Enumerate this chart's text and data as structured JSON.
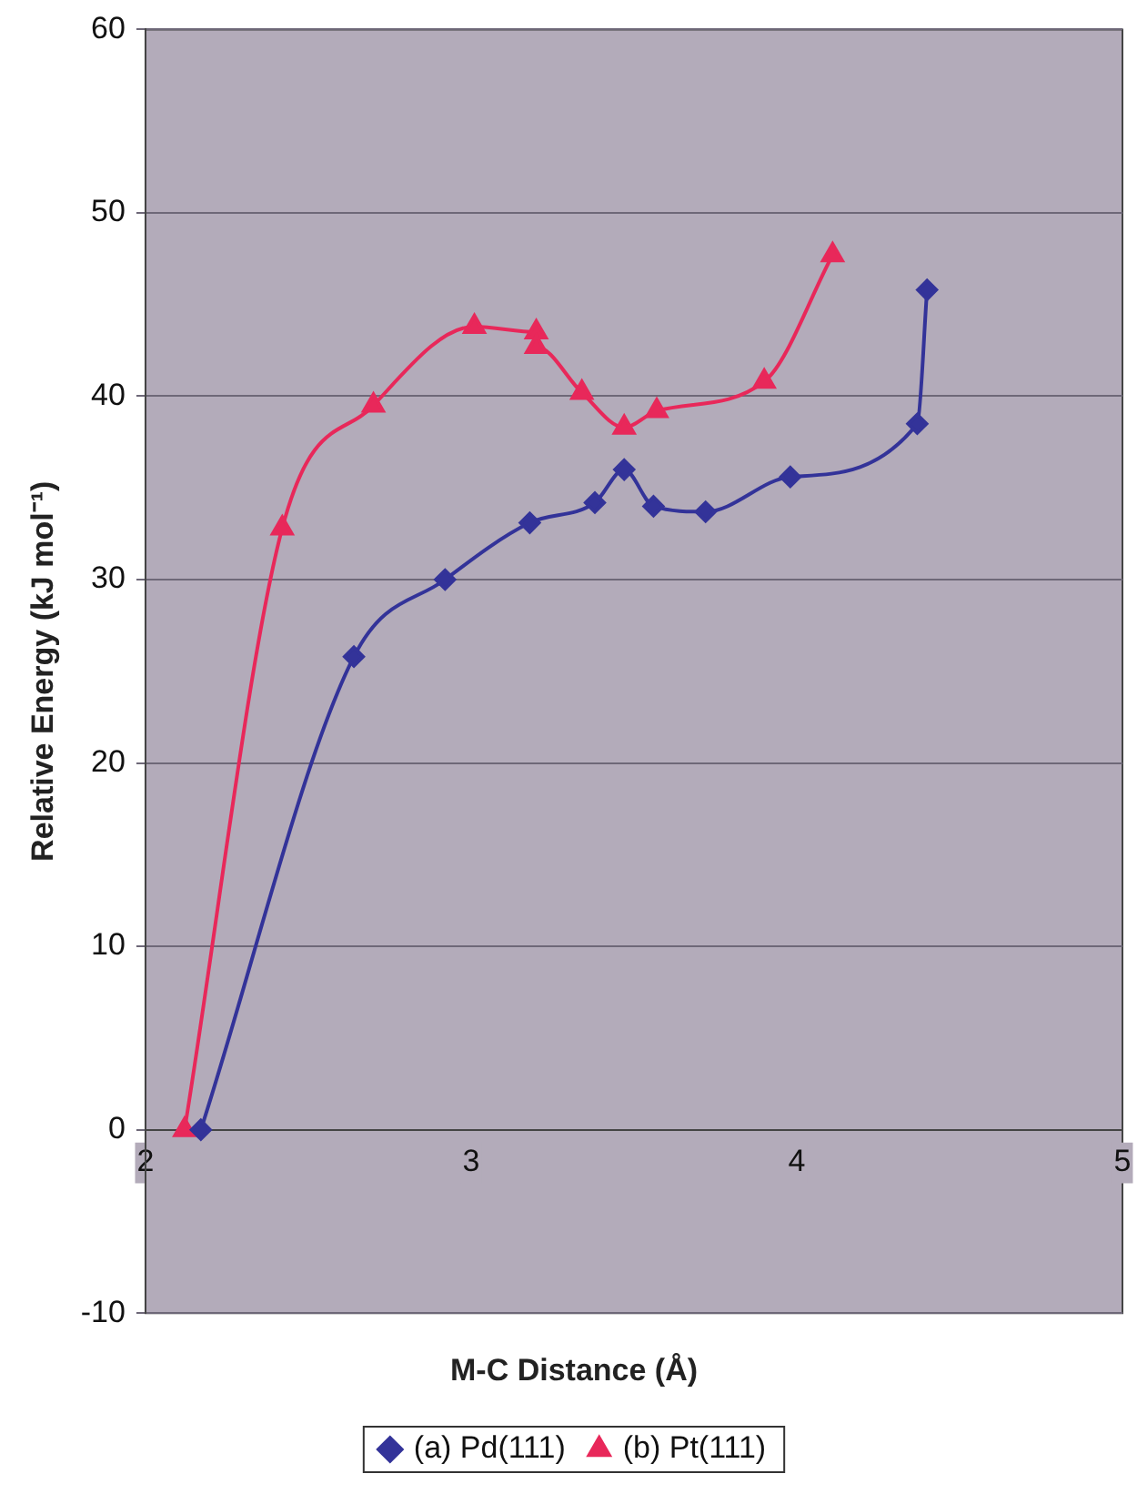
{
  "chart_data": {
    "type": "line",
    "xlabel": "M-C Distance (Å)",
    "ylabel": "Relative Energy (kJ mol⁻¹)",
    "xlim": [
      2,
      5
    ],
    "xticks": [
      2,
      3,
      4,
      5
    ],
    "ylim": [
      -10,
      60
    ],
    "yticks": [
      -10,
      0,
      10,
      20,
      30,
      40,
      50,
      60
    ],
    "grid": "y",
    "legend": "bottom",
    "line_style": "solid",
    "series": [
      {
        "name": "(a) Pd(111)",
        "color": "#333399",
        "marker": "diamond",
        "x": [
          2.17,
          2.64,
          2.92,
          3.18,
          3.38,
          3.47,
          3.56,
          3.72,
          3.98,
          4.37,
          4.4
        ],
        "values": [
          0,
          25.8,
          30,
          33.1,
          34.2,
          36,
          34,
          33.7,
          35.6,
          38.5,
          45.8
        ]
      },
      {
        "name": "(b) Pt(111)",
        "color": "#e8285a",
        "marker": "triangle",
        "x": [
          2.12,
          2.42,
          2.7,
          3.01,
          3.2,
          3.2,
          3.34,
          3.47,
          3.57,
          3.9,
          4.11
        ],
        "values": [
          0,
          32.8,
          39.5,
          43.8,
          43.5,
          42.7,
          40.2,
          38.3,
          39.2,
          40.8,
          47.7
        ]
      }
    ]
  }
}
